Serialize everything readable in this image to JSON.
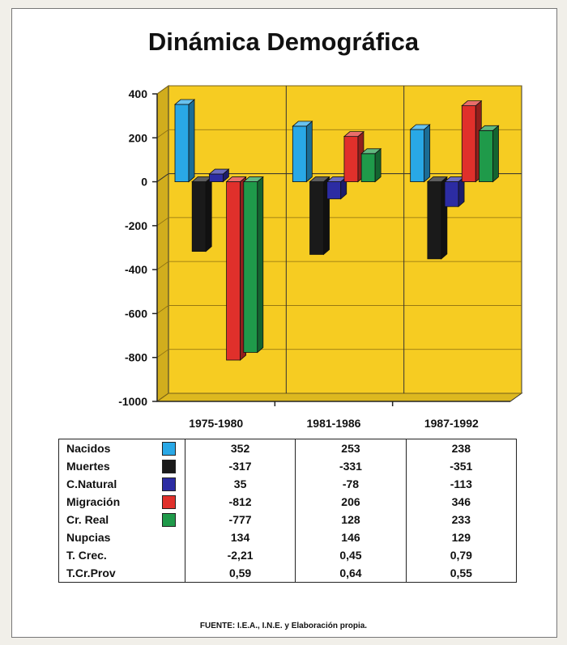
{
  "title": "Dinámica Demográfica",
  "source": "FUENTE: I.E.A., I.N.E. y Elaboración propia.",
  "chart_data": {
    "type": "bar",
    "categories": [
      "1975-1980",
      "1981-1986",
      "1987-1992"
    ],
    "series": [
      {
        "name": "Nacidos",
        "values": [
          352,
          253,
          238
        ],
        "color": "#29a8e6"
      },
      {
        "name": "Muertes",
        "values": [
          -317,
          -331,
          -351
        ],
        "color": "#1a1a1a"
      },
      {
        "name": "C.Natural",
        "values": [
          35,
          -78,
          -113
        ],
        "color": "#2c2ca3"
      },
      {
        "name": "Migración",
        "values": [
          -812,
          206,
          346
        ],
        "color": "#e0302b"
      },
      {
        "name": "Cr. Real",
        "values": [
          -777,
          128,
          233
        ],
        "color": "#1f9a4a"
      }
    ],
    "ylim": [
      -1000,
      400
    ],
    "yticks": [
      400,
      200,
      0,
      -200,
      -400,
      -600,
      -800,
      -1000
    ],
    "ytick_labels": [
      "400",
      "200",
      "0",
      "-200",
      "-400",
      "-600",
      "-800",
      "-1000"
    ],
    "plot_background": "#f6cc22",
    "grid": true
  },
  "table": {
    "rows": [
      {
        "label": "Nacidos",
        "values": [
          "352",
          "253",
          "238"
        ],
        "color": "#29a8e6"
      },
      {
        "label": "Muertes",
        "values": [
          "-317",
          "-331",
          "-351"
        ],
        "color": "#1a1a1a"
      },
      {
        "label": "C.Natural",
        "values": [
          "35",
          "-78",
          "-113"
        ],
        "color": "#2c2ca3"
      },
      {
        "label": "Migración",
        "values": [
          "-812",
          "206",
          "346"
        ],
        "color": "#e0302b"
      },
      {
        "label": "Cr. Real",
        "values": [
          "-777",
          "128",
          "233"
        ],
        "color": "#1f9a4a"
      },
      {
        "label": "Nupcias",
        "values": [
          "134",
          "146",
          "129"
        ]
      },
      {
        "label": "T. Crec.",
        "values": [
          "-2,21",
          "0,45",
          "0,79"
        ]
      },
      {
        "label": "T.Cr.Prov",
        "values": [
          "0,59",
          "0,64",
          "0,55"
        ]
      }
    ]
  }
}
